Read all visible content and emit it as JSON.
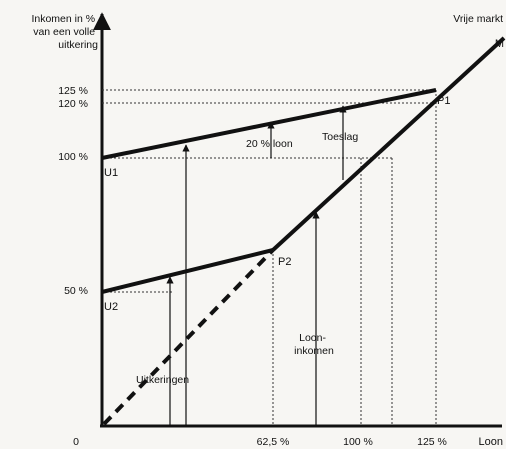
{
  "y_axis_title": [
    "Inkomen in %",
    "van een volle",
    "uitkering"
  ],
  "x_axis_title": "Loon",
  "origin_label": "0",
  "y_ticks": [
    "125 %",
    "120 %",
    "100 %",
    "50 %"
  ],
  "x_ticks": [
    "62,5 %",
    "100 %",
    "125 %"
  ],
  "points": {
    "u1": "U1",
    "u2": "U2",
    "p1": "P1",
    "p2": "P2",
    "m": "M"
  },
  "annotations": {
    "market": "Vrije markt",
    "wage_20": "20 % loon",
    "toeslag": "Toeslag",
    "loon_inkomen": [
      "Loon-",
      "inkomen"
    ],
    "uitkeringen": "Uitkeringen"
  },
  "colors": {
    "ink": "#111111",
    "background": "#f7f6f3"
  }
}
